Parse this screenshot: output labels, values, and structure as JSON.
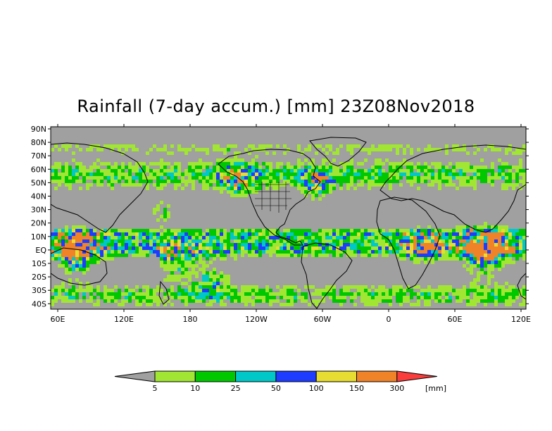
{
  "title": "Rainfall (7-day accum.) [mm] 23Z08Nov2018",
  "lat_labels": [
    "90N",
    "80N",
    "70N",
    "60N",
    "50N",
    "40N",
    "30N",
    "20N",
    "10N",
    "EQ",
    "10S",
    "20S",
    "30S",
    "40S"
  ],
  "lon_labels": [
    "60E",
    "120E",
    "180",
    "120W",
    "60W",
    "0",
    "60E",
    "120E"
  ],
  "colorbar": {
    "labels": [
      "5",
      "10",
      "25",
      "50",
      "100",
      "150",
      "300"
    ],
    "unit": "[mm]",
    "colors": {
      "below": "#a0a0a0",
      "bins": [
        "#a0e632",
        "#00c800",
        "#00c8c8",
        "#1e3cff",
        "#e6dc32",
        "#f08228"
      ],
      "above": "#fa3c3c"
    }
  },
  "map": {
    "background": "#a0a0a0",
    "coast_color": "#000000"
  }
}
